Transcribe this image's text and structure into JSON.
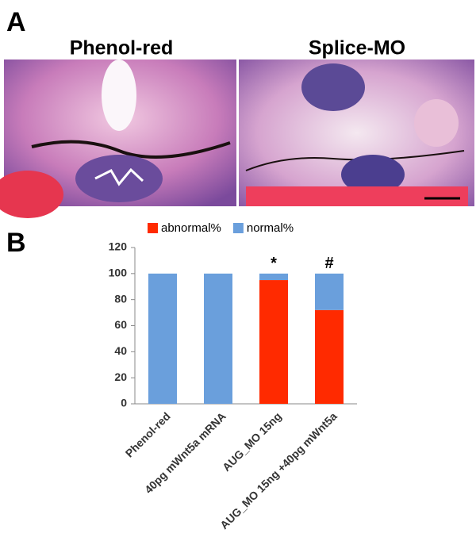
{
  "panel_a": {
    "label": "A",
    "images": [
      "Phenol-red",
      "Splice-MO"
    ]
  },
  "panel_b": {
    "label": "B"
  },
  "chart_data": {
    "type": "stacked_bar",
    "categories": [
      "Phenol-red",
      "40pg mWnt5a mRNA",
      "AUG_MO 15ng",
      "AUG_MO 15ng +40pg mWnt5a"
    ],
    "series": [
      {
        "name": "abnormal%",
        "color": "#ff2a00",
        "values": [
          0,
          0,
          95,
          72
        ]
      },
      {
        "name": "normal%",
        "color": "#6a9fdc",
        "values": [
          100,
          100,
          5,
          28
        ]
      }
    ],
    "bar_annotations": [
      null,
      null,
      "*",
      "#"
    ],
    "ylim": [
      0,
      120
    ],
    "yticks": [
      0,
      20,
      40,
      60,
      80,
      100,
      120
    ],
    "grid": false,
    "legend": "top"
  }
}
